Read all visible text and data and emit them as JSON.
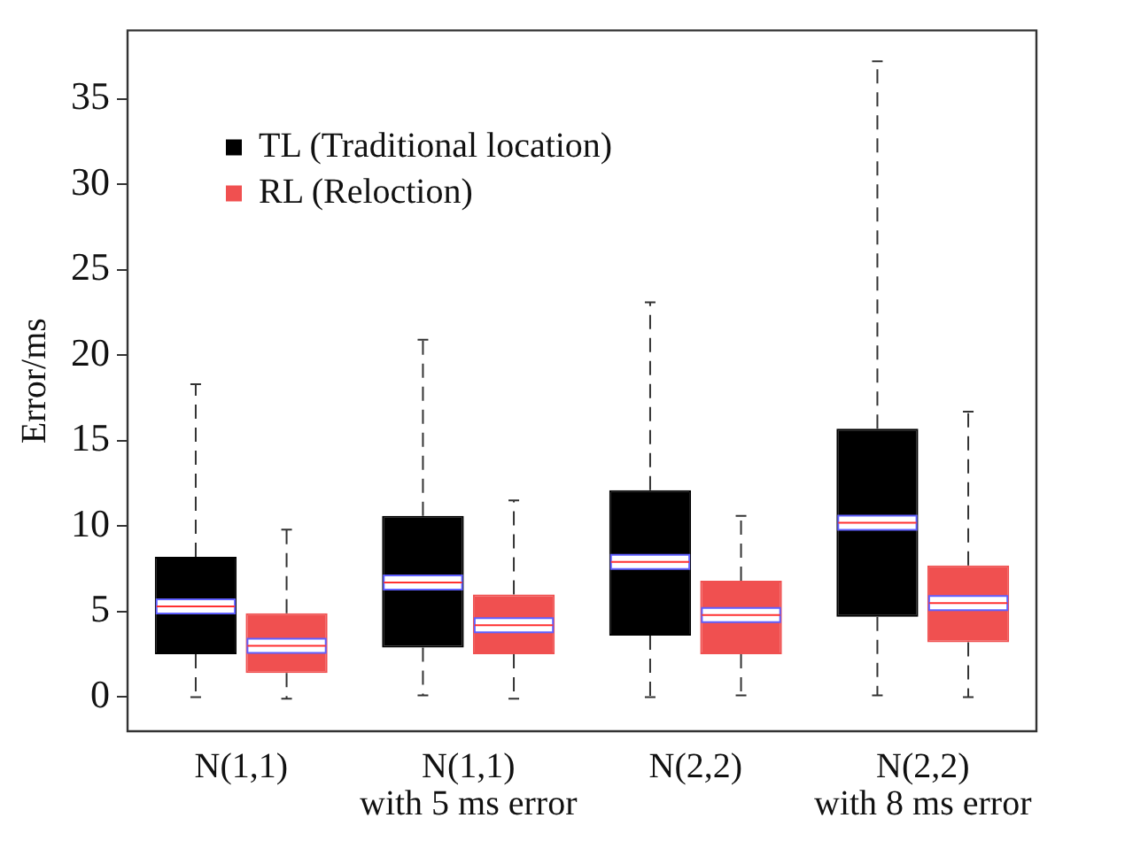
{
  "chart_data": {
    "type": "box",
    "ylabel": "Error/ms",
    "categories": [
      "N(1,1)",
      "N(1,1)\nwith 5 ms error",
      "N(2,2)",
      "N(2,2)\nwith 8 ms error"
    ],
    "series": [
      {
        "name": "TL (Traditional location)",
        "color": "#000000",
        "boxes": [
          {
            "low": 0,
            "q1": 2.5,
            "median": 5.3,
            "q3": 8.2,
            "high": 18.3
          },
          {
            "low": 0.1,
            "q1": 2.9,
            "median": 6.7,
            "q3": 10.6,
            "high": 20.9
          },
          {
            "low": 0,
            "q1": 3.6,
            "median": 7.9,
            "q3": 12.1,
            "high": 23.1
          },
          {
            "low": 0.1,
            "q1": 4.7,
            "median": 10.2,
            "q3": 15.7,
            "high": 37.2
          }
        ]
      },
      {
        "name": "RL (Reloction)",
        "color": "#f05050",
        "boxes": [
          {
            "low": -0.1,
            "q1": 1.4,
            "median": 3.0,
            "q3": 4.9,
            "high": 9.8
          },
          {
            "low": -0.1,
            "q1": 2.5,
            "median": 4.2,
            "q3": 6.0,
            "high": 11.5
          },
          {
            "low": 0.1,
            "q1": 2.5,
            "median": 4.8,
            "q3": 6.8,
            "high": 10.6
          },
          {
            "low": 0,
            "q1": 3.2,
            "median": 5.5,
            "q3": 7.7,
            "high": 16.7
          }
        ]
      }
    ],
    "ylim": [
      -2,
      39
    ],
    "yticks": [
      0,
      5,
      10,
      15,
      20,
      25,
      30,
      35
    ],
    "grid": false,
    "legend": "top left"
  }
}
